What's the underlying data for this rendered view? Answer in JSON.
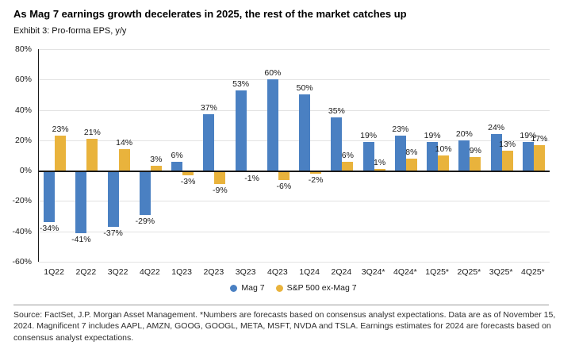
{
  "header": {
    "title": "As Mag 7 earnings growth decelerates in 2025, the rest of the market catches up",
    "subtitle": "Exhibit 3: Pro-forma EPS, y/y"
  },
  "chart_data": {
    "type": "bar",
    "categories": [
      "1Q22",
      "2Q22",
      "3Q22",
      "4Q22",
      "1Q23",
      "2Q23",
      "3Q23",
      "4Q23",
      "1Q24",
      "2Q24",
      "3Q24*",
      "4Q24*",
      "1Q25*",
      "2Q25*",
      "3Q25*",
      "4Q25*"
    ],
    "series": [
      {
        "name": "Mag 7",
        "color": "#4a80c2",
        "values": [
          -34,
          -41,
          -37,
          -29,
          6,
          37,
          53,
          60,
          50,
          35,
          19,
          23,
          19,
          20,
          24,
          19
        ]
      },
      {
        "name": "S&P 500 ex-Mag 7",
        "color": "#e9b33c",
        "values": [
          23,
          21,
          14,
          3,
          -3,
          -9,
          -1,
          -6,
          -2,
          6,
          1,
          8,
          10,
          9,
          13,
          17
        ]
      }
    ],
    "title": "As Mag 7 earnings growth decelerates in 2025, the rest of the market catches up",
    "subtitle": "Exhibit 3: Pro-forma EPS, y/y",
    "xlabel": "",
    "ylabel": "Pro-forma EPS, y/y",
    "ylim": [
      -60,
      80
    ],
    "yticks": [
      80,
      60,
      40,
      20,
      0,
      -20,
      -40,
      -60
    ],
    "ytick_labels": [
      "80%",
      "60%",
      "40%",
      "20%",
      "0%",
      "-20%",
      "-40%",
      "-60%"
    ],
    "grid": true,
    "legend_position": "bottom",
    "data_label_format": "{value}%"
  },
  "footer": {
    "source": "Source: FactSet, J.P. Morgan Asset Management. *Numbers are forecasts based on consensus analyst expectations. Data are as of November 15, 2024. Magnificent 7 includes AAPL, AMZN, GOOG, GOOGL, META, MSFT, NVDA and TSLA. Earnings estimates for 2024 are forecasts based on consensus analyst expectations."
  }
}
